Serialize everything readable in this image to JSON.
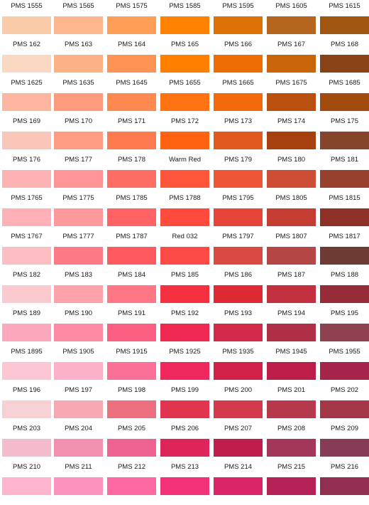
{
  "rows": [
    {
      "swatches": [
        {
          "label": "PMS 1555",
          "color": "#FACCAA"
        },
        {
          "label": "PMS 1565",
          "color": "#FDB78F"
        },
        {
          "label": "PMS 1575",
          "color": "#FF9F57"
        },
        {
          "label": "PMS 1585",
          "color": "#FF8300"
        },
        {
          "label": "PMS 1595",
          "color": "#DD7206"
        },
        {
          "label": "PMS 1605",
          "color": "#B5651D"
        },
        {
          "label": "PMS 1615",
          "color": "#A0560F"
        }
      ]
    },
    {
      "swatches": [
        {
          "label": "PMS 162",
          "color": "#FBD8C2"
        },
        {
          "label": "PMS 163",
          "color": "#FDB385"
        },
        {
          "label": "PMS 164",
          "color": "#FF9354"
        },
        {
          "label": "PMS 165",
          "color": "#FF8001"
        },
        {
          "label": "PMS 166",
          "color": "#EC6D03"
        },
        {
          "label": "PMS 167",
          "color": "#C96408"
        },
        {
          "label": "PMS 168",
          "color": "#874316"
        }
      ]
    },
    {
      "swatches": [
        {
          "label": "PMS 1625",
          "color": "#FDB59F"
        },
        {
          "label": "PMS 1635",
          "color": "#FE9C80"
        },
        {
          "label": "PMS 1645",
          "color": "#FF8850"
        },
        {
          "label": "PMS 1655",
          "color": "#FF7212"
        },
        {
          "label": "PMS 1665",
          "color": "#F3680A"
        },
        {
          "label": "PMS 1675",
          "color": "#B9500F"
        },
        {
          "label": "PMS 1685",
          "color": "#A04A0E"
        }
      ]
    },
    {
      "swatches": [
        {
          "label": "PMS 169",
          "color": "#FBC6BA"
        },
        {
          "label": "PMS 170",
          "color": "#FE9C84"
        },
        {
          "label": "PMS 171",
          "color": "#FF7A4E"
        },
        {
          "label": "PMS 172",
          "color": "#FF6210"
        },
        {
          "label": "PMS 173",
          "color": "#E05A1E"
        },
        {
          "label": "PMS 174",
          "color": "#A6400F"
        },
        {
          "label": "PMS 175",
          "color": "#86452A"
        }
      ]
    },
    {
      "swatches": [
        {
          "label": "PMS 176",
          "color": "#FCB2B2"
        },
        {
          "label": "PMS 177",
          "color": "#FE9494"
        },
        {
          "label": "PMS 178",
          "color": "#FF6E64"
        },
        {
          "label": "Warm Red",
          "color": "#FF553A"
        },
        {
          "label": "PMS 179",
          "color": "#EF5638"
        },
        {
          "label": "PMS 180",
          "color": "#CE4D35"
        },
        {
          "label": "PMS 181",
          "color": "#98402E"
        }
      ]
    },
    {
      "swatches": [
        {
          "label": "PMS 1765",
          "color": "#FDB1B6"
        },
        {
          "label": "PMS 1775",
          "color": "#FE999D"
        },
        {
          "label": "PMS 1785",
          "color": "#FF6264"
        },
        {
          "label": "PMS 1788",
          "color": "#FF4A3E"
        },
        {
          "label": "PMS 1795",
          "color": "#E6453A"
        },
        {
          "label": "PMS 1805",
          "color": "#C43D33"
        },
        {
          "label": "PMS 1815",
          "color": "#8D3128"
        }
      ]
    },
    {
      "swatches": [
        {
          "label": "PMS 1767",
          "color": "#FCBEC3"
        },
        {
          "label": "PMS 1777",
          "color": "#FE7B85"
        },
        {
          "label": "PMS 1787",
          "color": "#FF5A5F"
        },
        {
          "label": "Red 032",
          "color": "#FF4B47"
        },
        {
          "label": "PMS 1797",
          "color": "#D94A42"
        },
        {
          "label": "PMS 1807",
          "color": "#B54646"
        },
        {
          "label": "PMS 1817",
          "color": "#6E3A34"
        }
      ]
    },
    {
      "swatches": [
        {
          "label": "PMS 182",
          "color": "#FBCACF"
        },
        {
          "label": "PMS 183",
          "color": "#FEA2AC"
        },
        {
          "label": "PMS 184",
          "color": "#FF7785"
        },
        {
          "label": "PMS 185",
          "color": "#F5313F"
        },
        {
          "label": "PMS 186",
          "color": "#DF2A36"
        },
        {
          "label": "PMS 187",
          "color": "#C22F3E"
        },
        {
          "label": "PMS 188",
          "color": "#952C38"
        }
      ]
    },
    {
      "swatches": [
        {
          "label": "PMS 189",
          "color": "#FDA8BC"
        },
        {
          "label": "PMS 190",
          "color": "#FE8BA3"
        },
        {
          "label": "PMS 191",
          "color": "#FA5F82"
        },
        {
          "label": "PMS 192",
          "color": "#EF2851"
        },
        {
          "label": "PMS 193",
          "color": "#D2284A"
        },
        {
          "label": "PMS 194",
          "color": "#AF3046"
        },
        {
          "label": "PMS 195",
          "color": "#8D404D"
        }
      ]
    },
    {
      "swatches": [
        {
          "label": "PMS 1895",
          "color": "#FCC6D3"
        },
        {
          "label": "PMS 1905",
          "color": "#FDB1C8"
        },
        {
          "label": "PMS 1915",
          "color": "#FA7096"
        },
        {
          "label": "PMS 1925",
          "color": "#EE275C"
        },
        {
          "label": "PMS 1935",
          "color": "#D12049"
        },
        {
          "label": "PMS 1945",
          "color": "#BD1E49"
        },
        {
          "label": "PMS 1955",
          "color": "#A5254A"
        }
      ]
    },
    {
      "swatches": [
        {
          "label": "PMS 196",
          "color": "#F6D0D2"
        },
        {
          "label": "PMS 197",
          "color": "#F6A9B2"
        },
        {
          "label": "PMS 198",
          "color": "#EC6F7F"
        },
        {
          "label": "PMS 199",
          "color": "#E1344E"
        },
        {
          "label": "PMS 200",
          "color": "#D43A4E"
        },
        {
          "label": "PMS 201",
          "color": "#B63A4B"
        },
        {
          "label": "PMS 202",
          "color": "#A33647"
        }
      ]
    },
    {
      "swatches": [
        {
          "label": "PMS 203",
          "color": "#F4BCCD"
        },
        {
          "label": "PMS 204",
          "color": "#F291AF"
        },
        {
          "label": "PMS 205",
          "color": "#EE6292"
        },
        {
          "label": "PMS 206",
          "color": "#DE2458"
        },
        {
          "label": "PMS 207",
          "color": "#C11D4C"
        },
        {
          "label": "PMS 208",
          "color": "#A2375A"
        },
        {
          "label": "PMS 209",
          "color": "#883B56"
        }
      ]
    },
    {
      "swatches": [
        {
          "label": "PMS 210",
          "color": "#FEB3CF"
        },
        {
          "label": "PMS 211",
          "color": "#FE92BE"
        },
        {
          "label": "PMS 212",
          "color": "#FD67A2"
        },
        {
          "label": "PMS 213",
          "color": "#F33178"
        },
        {
          "label": "PMS 214",
          "color": "#DA2566"
        },
        {
          "label": "PMS 215",
          "color": "#B62157"
        },
        {
          "label": "PMS 216",
          "color": "#922E51"
        }
      ]
    }
  ]
}
